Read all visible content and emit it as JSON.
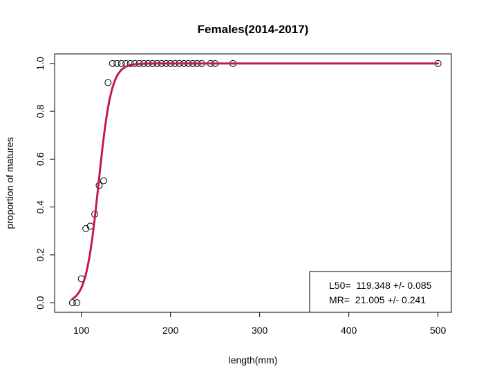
{
  "chart_data": {
    "type": "scatter",
    "title": "Females(2014-2017)",
    "xlabel": "length(mm)",
    "ylabel": "proportion of matures",
    "xlim": [
      70,
      515
    ],
    "ylim": [
      -0.04,
      1.04
    ],
    "x_ticks": [
      100,
      200,
      300,
      400,
      500
    ],
    "y_ticks": [
      0.0,
      0.2,
      0.4,
      0.6,
      0.8,
      1.0
    ],
    "x_tick_labels": [
      "100",
      "200",
      "300",
      "400",
      "500"
    ],
    "y_tick_labels": [
      "0.0",
      "0.2",
      "0.4",
      "0.6",
      "0.8",
      "1.0"
    ],
    "grid": false,
    "legend_position": "bottom-right",
    "points": [
      {
        "x": 90,
        "y": 0.0
      },
      {
        "x": 95,
        "y": 0.0
      },
      {
        "x": 100,
        "y": 0.1
      },
      {
        "x": 105,
        "y": 0.31
      },
      {
        "x": 110,
        "y": 0.32
      },
      {
        "x": 115,
        "y": 0.37
      },
      {
        "x": 120,
        "y": 0.49
      },
      {
        "x": 125,
        "y": 0.51
      },
      {
        "x": 130,
        "y": 0.92
      },
      {
        "x": 135,
        "y": 1.0
      },
      {
        "x": 140,
        "y": 1.0
      },
      {
        "x": 145,
        "y": 1.0
      },
      {
        "x": 150,
        "y": 1.0
      },
      {
        "x": 155,
        "y": 1.0
      },
      {
        "x": 160,
        "y": 1.0
      },
      {
        "x": 165,
        "y": 1.0
      },
      {
        "x": 170,
        "y": 1.0
      },
      {
        "x": 175,
        "y": 1.0
      },
      {
        "x": 180,
        "y": 1.0
      },
      {
        "x": 185,
        "y": 1.0
      },
      {
        "x": 190,
        "y": 1.0
      },
      {
        "x": 195,
        "y": 1.0
      },
      {
        "x": 200,
        "y": 1.0
      },
      {
        "x": 205,
        "y": 1.0
      },
      {
        "x": 210,
        "y": 1.0
      },
      {
        "x": 215,
        "y": 1.0
      },
      {
        "x": 220,
        "y": 1.0
      },
      {
        "x": 225,
        "y": 1.0
      },
      {
        "x": 230,
        "y": 1.0
      },
      {
        "x": 235,
        "y": 1.0
      },
      {
        "x": 245,
        "y": 1.0
      },
      {
        "x": 250,
        "y": 1.0
      },
      {
        "x": 270,
        "y": 1.0
      },
      {
        "x": 500,
        "y": 1.0
      }
    ],
    "fit": {
      "type": "logistic",
      "L50": 119.348,
      "MR": 21.005,
      "x_range": [
        90,
        500
      ],
      "color": "#c2185b"
    },
    "legend_lines": [
      "L50=  119.348 +/- 0.085",
      "MR=  21.005 +/- 0.241"
    ]
  }
}
